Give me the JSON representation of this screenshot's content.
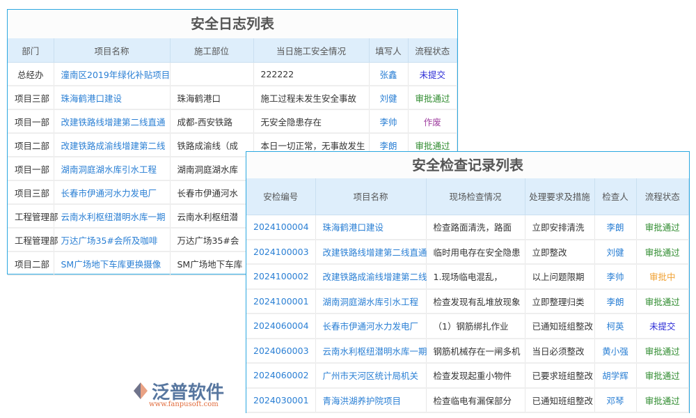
{
  "log": {
    "title": "安全日志列表",
    "headers": [
      "部门",
      "项目名称",
      "施工部位",
      "当日施工安全情况",
      "填写人",
      "流程状态"
    ],
    "rows": [
      [
        "总经办",
        "潼南区2019年绿化补贴项目",
        "",
        "222222",
        "张鑫",
        "未提交"
      ],
      [
        "项目三部",
        "珠海鹤港口建设",
        "珠海鹤港口",
        "施工过程未发生安全事故",
        "刘健",
        "审批通过"
      ],
      [
        "项目一部",
        "改建铁路线增建第二线直通",
        "成都-西安铁路",
        "无安全隐患存在",
        "李帅",
        "作废"
      ],
      [
        "项目二部",
        "改建铁路成渝线增建第二线",
        "铁路成渝线（成",
        "本日一切正常，无事故发生",
        "李朗",
        "审批通过"
      ],
      [
        "项目一部",
        "湖南洞庭湖水库引水工程",
        "湖南洞庭湖水库",
        "",
        "",
        ""
      ],
      [
        "项目三部",
        "长春市伊通河水力发电厂",
        "长春市伊通河水",
        "",
        "",
        ""
      ],
      [
        "工程管理部",
        "云南水利枢纽潜明水库一期",
        "云南水利枢纽潜",
        "",
        "",
        ""
      ],
      [
        "工程管理部",
        "万达广场35#会所及咖啡",
        "万达广场35#会",
        "",
        "",
        ""
      ],
      [
        "项目二部",
        "SM广场地下车库更换摄像",
        "SM广场地下车库",
        "",
        "",
        ""
      ]
    ]
  },
  "inspect": {
    "title": "安全检查记录列表",
    "headers": [
      "安检编号",
      "项目名称",
      "现场检查情况",
      "处理要求及措施",
      "检查人",
      "流程状态"
    ],
    "rows": [
      [
        "2024100004",
        "珠海鹤港口建设",
        "检查路面清洗，路面",
        "立即安排清洗",
        "李朗",
        "审批通过"
      ],
      [
        "2024100003",
        "改建铁路线增建第二线直通",
        "临时用电存在安全隐患",
        "立即整改",
        "刘健",
        "审批通过"
      ],
      [
        "2024100002",
        "改建铁路成渝线增建第二线",
        "1.现场临电混乱，",
        "以上问题限期",
        "李帅",
        "审批中"
      ],
      [
        "2024100001",
        "湖南洞庭湖水库引水工程",
        "检查发现有乱堆放现象",
        "立即整理归类",
        "李朗",
        "审批通过"
      ],
      [
        "2024060004",
        "长春市伊通河水力发电厂",
        "（1）钢筋绑扎作业",
        "已通知班组整改",
        "柯英",
        "未提交"
      ],
      [
        "2024060003",
        "云南水利枢纽潜明水库一期",
        "钢筋机械存在一闸多机",
        "当日必须整改",
        "黄小强",
        "审批通过"
      ],
      [
        "2024060002",
        "广州市天河区统计局机关",
        "检查发现起重小物件",
        "已要求班组整改",
        "胡学辉",
        "审批通过"
      ],
      [
        "2024030001",
        "青海洪湖养护院项目",
        "检查临电有漏保部分",
        "已通知班组整改",
        "邓琴",
        "审批通过"
      ]
    ]
  },
  "status_colors": {
    "审批通过": "#2e8b2e",
    "未提交": "#2b2bd6",
    "作废": "#a040a0",
    "审批中": "#f0a030"
  },
  "watermark": {
    "name": "泛普软件",
    "url": "www.fanpusoft.com"
  }
}
